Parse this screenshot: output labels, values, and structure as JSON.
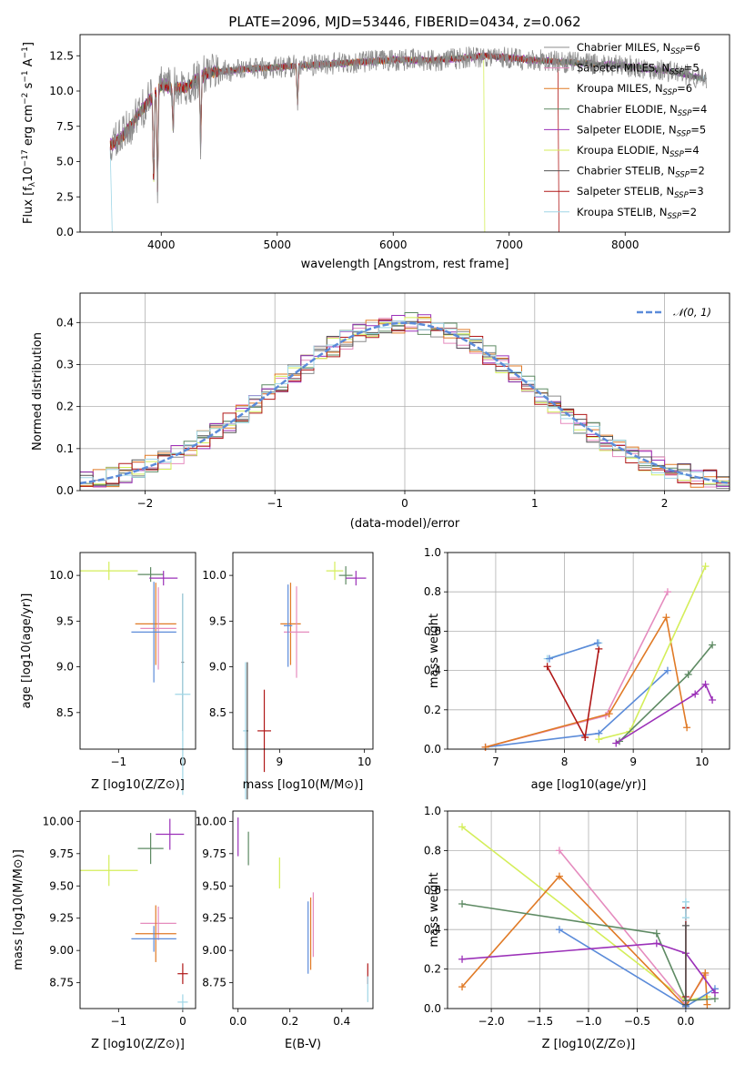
{
  "colors": {
    "chabrier_miles": "#8c8c8c",
    "salpeter_miles": "#e58bbe",
    "kroupa_miles": "#e07a26",
    "chabrier_elodie": "#5e8a63",
    "salpeter_elodie": "#9b30b8",
    "kroupa_elodie": "#d4ee5a",
    "chabrier_stelib": "#555555",
    "salpeter_stelib": "#b01818",
    "kroupa_stelib": "#9fd6e6",
    "gaussian": "#5b8bd9"
  },
  "chart_data": [
    {
      "id": "spectrum",
      "type": "line",
      "title": "PLATE=2096, MJD=53446, FIBERID=0434, z=0.062",
      "xlabel": "wavelength [Angstrom, rest frame]",
      "ylabel": "Flux [f_λ10^-17 erg cm^-2 s^-1 A^-1]",
      "xlim": [
        3300,
        8900
      ],
      "ylim": [
        0,
        14
      ],
      "xticks": [
        "4000",
        "5000",
        "6000",
        "7000",
        "8000"
      ],
      "yticks": [
        "0.0",
        "2.5",
        "5.0",
        "7.5",
        "10.0",
        "12.5"
      ],
      "continuum": {
        "x": [
          3560,
          3650,
          3800,
          4000,
          4200,
          4400,
          4800,
          5200,
          5600,
          6000,
          6400,
          6800,
          7200,
          7600,
          8000,
          8400,
          8700
        ],
        "y": [
          6.2,
          6.6,
          8.3,
          10.4,
          10.2,
          11.3,
          11.6,
          11.8,
          12.0,
          12.2,
          12.2,
          12.5,
          12.2,
          12.0,
          11.8,
          11.4,
          10.8
        ]
      },
      "absorption_lines": [
        {
          "x": 3934,
          "y": 2.8
        },
        {
          "x": 3968,
          "y": 3.0
        },
        {
          "x": 4102,
          "y": 7.0
        },
        {
          "x": 4340,
          "y": 6.2
        },
        {
          "x": 5175,
          "y": 9.0
        }
      ],
      "legend": [
        {
          "label": "Chabrier MILES, N",
          "sub": "SSP",
          "value": "=6",
          "color": "#8c8c8c"
        },
        {
          "label": "Salpeter MILES, N",
          "sub": "SSP",
          "value": "=5",
          "color": "#e58bbe"
        },
        {
          "label": "Kroupa MILES, N",
          "sub": "SSP",
          "value": "=6",
          "color": "#e07a26"
        },
        {
          "label": "Chabrier ELODIE, N",
          "sub": "SSP",
          "value": "=4",
          "color": "#5e8a63"
        },
        {
          "label": "Salpeter ELODIE, N",
          "sub": "SSP",
          "value": "=5",
          "color": "#9b30b8"
        },
        {
          "label": "Kroupa ELODIE, N",
          "sub": "SSP",
          "value": "=4",
          "color": "#d4ee5a"
        },
        {
          "label": "Chabrier STELIB, N",
          "sub": "SSP",
          "value": "=2",
          "color": "#555555"
        },
        {
          "label": "Salpeter STELIB, N",
          "sub": "SSP",
          "value": "=3",
          "color": "#b01818"
        },
        {
          "label": "Kroupa STELIB, N",
          "sub": "SSP",
          "value": "=2",
          "color": "#9fd6e6"
        }
      ]
    },
    {
      "id": "residuals",
      "type": "line",
      "xlabel": "(data-model)/error",
      "ylabel": "Normed distribution",
      "xlim": [
        -2.5,
        2.5
      ],
      "ylim": [
        0,
        0.47
      ],
      "xticks": [
        "−2",
        "−1",
        "0",
        "1",
        "2"
      ],
      "yticks": [
        "0.0",
        "0.1",
        "0.2",
        "0.3",
        "0.4"
      ],
      "legend": "𝒩(0, 1)",
      "bin_width": 0.1,
      "grid": true
    },
    {
      "id": "age_vs_Z",
      "type": "scatter",
      "xlabel": "Z [log10(Z/Z⊙)]",
      "ylabel": "age  [log10(age/yr)]",
      "xlim": [
        -1.6,
        0.2
      ],
      "ylim": [
        8.1,
        10.25
      ],
      "xticks": [
        "−1",
        "0"
      ],
      "yticks": [
        "8.5",
        "9.0",
        "9.5",
        "10.0"
      ],
      "points": [
        {
          "color": "#d4ee5a",
          "x": -1.15,
          "y": 10.05,
          "xerr": 0.45,
          "yerr": 0.1
        },
        {
          "color": "#5e8a63",
          "x": -0.5,
          "y": 10.01,
          "xerr": 0.2,
          "yerr": 0.08
        },
        {
          "color": "#9b30b8",
          "x": -0.3,
          "y": 9.97,
          "xerr": 0.22,
          "yerr": 0.08
        },
        {
          "color": "#e07a26",
          "x": -0.42,
          "y": 9.47,
          "xerr": 0.32,
          "yerr": 0.45
        },
        {
          "color": "#e58bbe",
          "x": -0.38,
          "y": 9.42,
          "xerr": 0.28,
          "yerr": 0.45
        },
        {
          "color": "#5b8bd9",
          "x": -0.45,
          "y": 9.38,
          "xerr": 0.35,
          "yerr": 0.55
        },
        {
          "color": "#555555",
          "x": 0.0,
          "y": 9.05,
          "xerr": 0.02,
          "yerr": 0.75
        },
        {
          "color": "#9fd6e6",
          "x": 0.0,
          "y": 8.7,
          "xerr": 0.12,
          "yerr": 1.1
        }
      ]
    },
    {
      "id": "age_vs_mass",
      "type": "scatter",
      "xlabel": "mass [log10(M/M⊙)]",
      "ylabel": "",
      "xlim": [
        8.45,
        10.1
      ],
      "ylim": [
        8.1,
        10.25
      ],
      "xticks": [
        "9",
        "10"
      ],
      "yticks": [
        "8.5",
        "9.0",
        "9.5",
        "10.0"
      ],
      "points": [
        {
          "color": "#d4ee5a",
          "x": 9.65,
          "y": 10.05,
          "xerr": 0.1,
          "yerr": 0.1
        },
        {
          "color": "#5e8a63",
          "x": 9.78,
          "y": 10.0,
          "xerr": 0.08,
          "yerr": 0.1
        },
        {
          "color": "#9b30b8",
          "x": 9.9,
          "y": 9.97,
          "xerr": 0.12,
          "yerr": 0.08
        },
        {
          "color": "#e07a26",
          "x": 9.13,
          "y": 9.47,
          "xerr": 0.12,
          "yerr": 0.45
        },
        {
          "color": "#e58bbe",
          "x": 9.2,
          "y": 9.38,
          "xerr": 0.15,
          "yerr": 0.5
        },
        {
          "color": "#5b8bd9",
          "x": 9.1,
          "y": 9.45,
          "xerr": 0.05,
          "yerr": 0.45
        },
        {
          "color": "#b01818",
          "x": 8.82,
          "y": 8.3,
          "xerr": 0.08,
          "yerr": 0.45
        },
        {
          "color": "#9fd6e6",
          "x": 8.6,
          "y": 8.3,
          "xerr": 0.03,
          "yerr": 0.75
        },
        {
          "color": "#555555",
          "x": 8.62,
          "y": 8.3,
          "xerr": 0.01,
          "yerr": 0.75
        }
      ]
    },
    {
      "id": "mass_weight_vs_age",
      "type": "line",
      "xlabel": "age  [log10(age/yr)]",
      "ylabel": "mass weight",
      "xlim": [
        6.3,
        10.4
      ],
      "ylim": [
        0,
        1.0
      ],
      "xticks": [
        "7",
        "8",
        "9",
        "10"
      ],
      "yticks": [
        "0.0",
        "0.2",
        "0.4",
        "0.6",
        "0.8",
        "1.0"
      ],
      "grid": true,
      "series": [
        {
          "color": "#5b8bd9",
          "x": [
            6.85,
            8.5,
            9.5
          ],
          "y": [
            0.01,
            0.08,
            0.4
          ]
        },
        {
          "color": "#e58bbe",
          "x": [
            6.85,
            8.6,
            9.5
          ],
          "y": [
            0.01,
            0.17,
            0.8
          ]
        },
        {
          "color": "#e07a26",
          "x": [
            6.85,
            8.65,
            9.48,
            9.78
          ],
          "y": [
            0.01,
            0.18,
            0.67,
            0.11
          ]
        },
        {
          "color": "#d4ee5a",
          "x": [
            8.5,
            8.95,
            10.05
          ],
          "y": [
            0.05,
            0.09,
            0.93
          ]
        },
        {
          "color": "#5e8a63",
          "x": [
            8.8,
            9.8,
            10.15
          ],
          "y": [
            0.04,
            0.38,
            0.53
          ]
        },
        {
          "color": "#9b30b8",
          "x": [
            8.75,
            9.9,
            10.05,
            10.15
          ],
          "y": [
            0.03,
            0.28,
            0.33,
            0.25
          ]
        },
        {
          "color": "#b01818",
          "x": [
            7.75,
            8.3,
            8.5
          ],
          "y": [
            0.42,
            0.06,
            0.51
          ]
        },
        {
          "color": "#9fd6e6",
          "x": [
            7.75,
            8.5
          ],
          "y": [
            0.46,
            0.54
          ]
        },
        {
          "color": "#5b8bd9",
          "x": [
            7.78,
            8.48
          ],
          "y": [
            0.46,
            0.54
          ]
        }
      ]
    },
    {
      "id": "mass_vs_Z",
      "type": "scatter",
      "xlabel": "Z [log10(Z/Z⊙)]",
      "ylabel": "mass [log10(M/M⊙)]",
      "xlim": [
        -1.6,
        0.2
      ],
      "ylim": [
        8.55,
        10.08
      ],
      "xticks": [
        "−1",
        "0"
      ],
      "yticks": [
        "8.75",
        "9.00",
        "9.25",
        "9.50",
        "9.75",
        "10.00"
      ],
      "points": [
        {
          "color": "#d4ee5a",
          "x": -1.15,
          "y": 9.62,
          "xerr": 0.45,
          "yerr": 0.12
        },
        {
          "color": "#5e8a63",
          "x": -0.5,
          "y": 9.79,
          "xerr": 0.2,
          "yerr": 0.12
        },
        {
          "color": "#9b30b8",
          "x": -0.2,
          "y": 9.9,
          "xerr": 0.22,
          "yerr": 0.12
        },
        {
          "color": "#e58bbe",
          "x": -0.38,
          "y": 9.21,
          "xerr": 0.28,
          "yerr": 0.13
        },
        {
          "color": "#e07a26",
          "x": -0.42,
          "y": 9.13,
          "xerr": 0.32,
          "yerr": 0.22
        },
        {
          "color": "#5b8bd9",
          "x": -0.45,
          "y": 9.09,
          "xerr": 0.35,
          "yerr": 0.1
        },
        {
          "color": "#b01818",
          "x": 0.0,
          "y": 8.82,
          "xerr": 0.08,
          "yerr": 0.08
        },
        {
          "color": "#9fd6e6",
          "x": 0.0,
          "y": 8.6,
          "xerr": 0.08,
          "yerr": 0.06
        }
      ]
    },
    {
      "id": "mass_vs_ebv",
      "type": "scatter",
      "xlabel": "E(B-V)",
      "ylabel": "",
      "xlim": [
        -0.02,
        0.52
      ],
      "ylim": [
        8.55,
        10.08
      ],
      "xticks": [
        "0.0",
        "0.2",
        "0.4"
      ],
      "yticks": [
        "8.75",
        "9.00",
        "9.25",
        "9.50",
        "9.75",
        "10.00"
      ],
      "points": [
        {
          "color": "#9b30b8",
          "x": 0.0,
          "y": 9.88,
          "xerr": 0,
          "yerr": 0.15
        },
        {
          "color": "#5e8a63",
          "x": 0.04,
          "y": 9.79,
          "xerr": 0,
          "yerr": 0.13
        },
        {
          "color": "#d4ee5a",
          "x": 0.16,
          "y": 9.6,
          "xerr": 0,
          "yerr": 0.12
        },
        {
          "color": "#5b8bd9",
          "x": 0.27,
          "y": 9.1,
          "xerr": 0,
          "yerr": 0.28
        },
        {
          "color": "#e07a26",
          "x": 0.28,
          "y": 9.13,
          "xerr": 0,
          "yerr": 0.28
        },
        {
          "color": "#e58bbe",
          "x": 0.29,
          "y": 9.2,
          "xerr": 0,
          "yerr": 0.25
        },
        {
          "color": "#b01818",
          "x": 0.5,
          "y": 8.82,
          "xerr": 0,
          "yerr": 0.08
        },
        {
          "color": "#9fd6e6",
          "x": 0.5,
          "y": 8.7,
          "xerr": 0,
          "yerr": 0.1
        }
      ]
    },
    {
      "id": "mass_weight_vs_Z",
      "type": "line",
      "xlabel": "Z [log10(Z/Z⊙)]",
      "ylabel": "mass weight",
      "xlim": [
        -2.45,
        0.45
      ],
      "ylim": [
        0,
        1.0
      ],
      "xticks": [
        "−2.0",
        "−1.5",
        "−1.0",
        "−0.5",
        "0.0"
      ],
      "yticks": [
        "0.0",
        "0.2",
        "0.4",
        "0.6",
        "0.8",
        "1.0"
      ],
      "grid": true,
      "series": [
        {
          "color": "#d4ee5a",
          "x": [
            -2.3,
            0.0,
            0.22
          ],
          "y": [
            0.92,
            0.04,
            0.06
          ]
        },
        {
          "color": "#e58bbe",
          "x": [
            -1.3,
            0.0,
            0.2
          ],
          "y": [
            0.8,
            0.02,
            0.17
          ]
        },
        {
          "color": "#e07a26",
          "x": [
            -2.3,
            -1.3,
            0.0,
            0.2,
            0.22
          ],
          "y": [
            0.11,
            0.67,
            0.01,
            0.18,
            0.02
          ]
        },
        {
          "color": "#5b8bd9",
          "x": [
            -1.3,
            0.0,
            0.3
          ],
          "y": [
            0.4,
            0.01,
            0.1
          ]
        },
        {
          "color": "#5e8a63",
          "x": [
            -2.3,
            -0.3,
            0.0,
            0.3
          ],
          "y": [
            0.53,
            0.38,
            0.04,
            0.05
          ]
        },
        {
          "color": "#9b30b8",
          "x": [
            -2.3,
            -0.3,
            0.0,
            0.3
          ],
          "y": [
            0.25,
            0.33,
            0.28,
            0.08
          ]
        },
        {
          "color": "#b01818",
          "x": [
            0.0,
            0.0
          ],
          "y": [
            0.06,
            0.51
          ]
        },
        {
          "color": "#9fd6e6",
          "x": [
            0.0,
            0.0
          ],
          "y": [
            0.46,
            0.54
          ]
        },
        {
          "color": "#555555",
          "x": [
            0.0,
            0.0
          ],
          "y": [
            0.02,
            0.42
          ]
        }
      ]
    }
  ]
}
